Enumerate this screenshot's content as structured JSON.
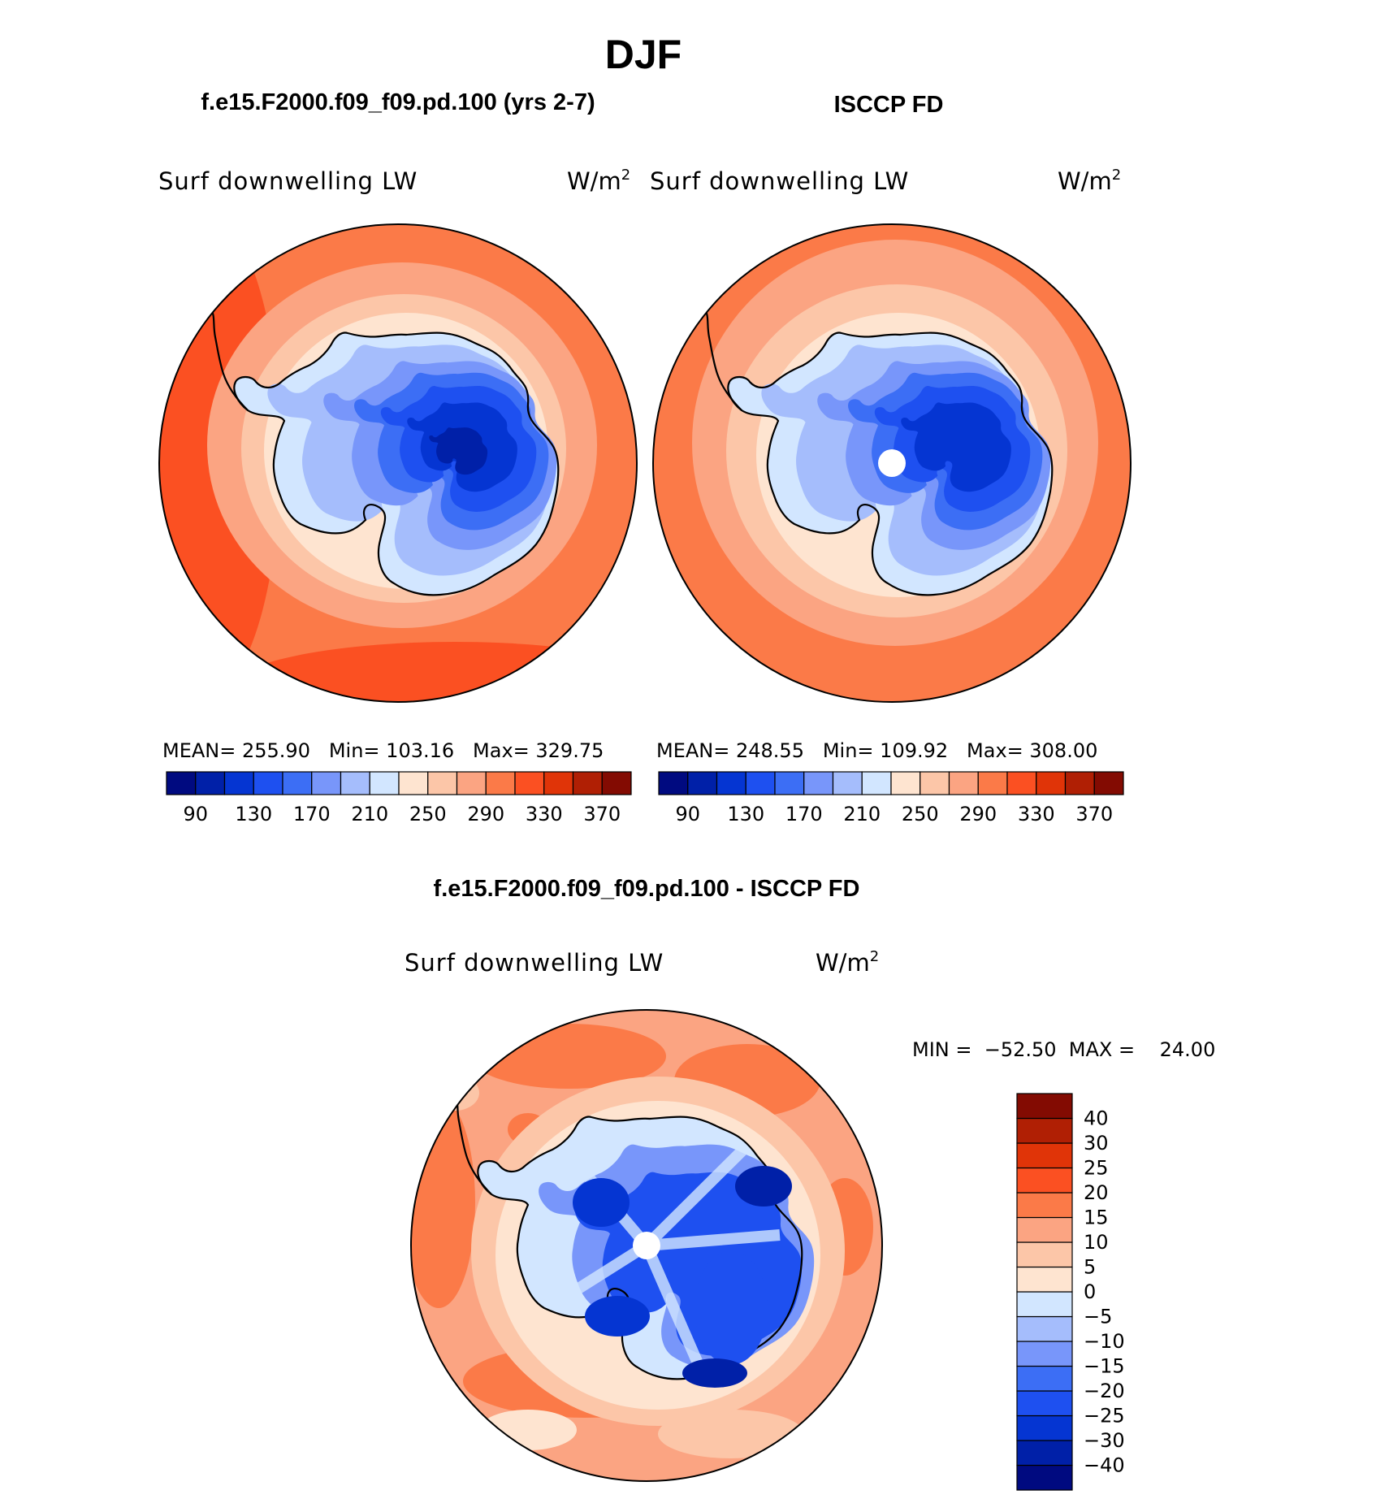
{
  "title": "DJF",
  "panels": [
    {
      "heading": "f.e15.F2000.f09_f09.pd.100 (yrs 2-7)",
      "variable": "Surf downwelling LW",
      "units_base": "W/m",
      "units_exp": "2",
      "stats": "MEAN= 255.90   Min= 103.16   Max= 329.75",
      "field": "model"
    },
    {
      "heading": "ISCCP FD",
      "variable": "Surf downwelling LW",
      "units_base": "W/m",
      "units_exp": "2",
      "stats": "MEAN= 248.55   Min= 109.92   Max= 308.00",
      "field": "obs"
    }
  ],
  "diff_panel": {
    "heading": "f.e15.F2000.f09_f09.pd.100 - ISCCP FD",
    "variable": "Surf downwelling LW",
    "units_base": "W/m",
    "units_exp": "2",
    "stats": "MIN =  −52.50  MAX =    24.00"
  },
  "abs_colorbar": {
    "colors": [
      "#000a80",
      "#0020a8",
      "#0535d2",
      "#1e50f0",
      "#3c6ef5",
      "#7896fa",
      "#a5bdfc",
      "#d2e6ff",
      "#fee4d0",
      "#fcc6a8",
      "#fba482",
      "#fb7a48",
      "#fb5022",
      "#e03408",
      "#b01f04",
      "#830b02"
    ],
    "tick_labels": [
      "90",
      "130",
      "170",
      "210",
      "250",
      "290",
      "330",
      "370"
    ]
  },
  "diff_colorbar": {
    "colors": [
      "#000a80",
      "#0020a8",
      "#0535d2",
      "#1e50f0",
      "#3c6ef5",
      "#7896fa",
      "#a5bdfc",
      "#d2e6ff",
      "#fee4d0",
      "#fcc6a8",
      "#fba482",
      "#fb7a48",
      "#fb5022",
      "#e03408",
      "#b01f04",
      "#830b02"
    ],
    "tick_labels": [
      "−40",
      "−30",
      "−25",
      "−20",
      "−15",
      "−10",
      "−5",
      "0",
      "5",
      "10",
      "15",
      "20",
      "25",
      "30",
      "40"
    ]
  }
}
